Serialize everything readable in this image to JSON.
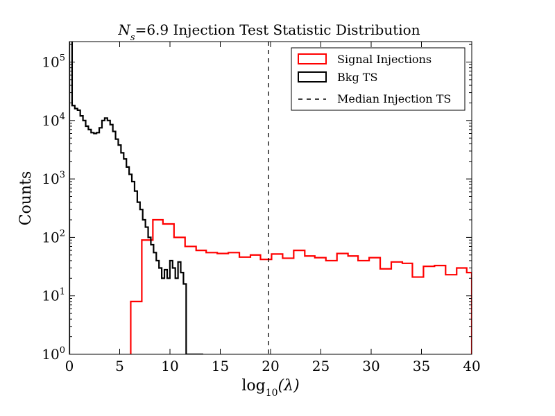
{
  "chart_data": {
    "type": "histogram",
    "title_prefix": "N",
    "title_subscript": "s",
    "title_rest": "=6.9 Injection Test Statistic Distribution",
    "xlabel_prefix": "log",
    "xlabel_subscript": "10",
    "xlabel_rest": "(λ)",
    "ylabel": "Counts",
    "xlim": [
      0,
      40
    ],
    "ylim_log10": [
      0,
      5.35
    ],
    "y_scale": "log",
    "grid": false,
    "legend_placement": "top-right",
    "x_ticks": [
      "0",
      "5",
      "10",
      "15",
      "20",
      "25",
      "30",
      "35",
      "40"
    ],
    "x_tick_values": [
      0,
      5,
      10,
      15,
      20,
      25,
      30,
      35,
      40
    ],
    "y_ticks": [
      {
        "base": "10",
        "exp": "0",
        "value": 1
      },
      {
        "base": "10",
        "exp": "1",
        "value": 10
      },
      {
        "base": "10",
        "exp": "2",
        "value": 100
      },
      {
        "base": "10",
        "exp": "3",
        "value": 1000
      },
      {
        "base": "10",
        "exp": "4",
        "value": 10000
      },
      {
        "base": "10",
        "exp": "5",
        "value": 100000
      }
    ],
    "series": [
      {
        "name": "Signal Injections",
        "color": "#ff0000",
        "style": "step",
        "bin_edges": [
          6.1,
          7.2,
          8.3,
          9.3,
          10.4,
          11.5,
          12.6,
          13.6,
          14.7,
          15.8,
          16.9,
          18.0,
          19.0,
          20.1,
          21.2,
          22.3,
          23.4,
          24.4,
          25.5,
          26.6,
          27.7,
          28.7,
          29.8,
          30.9,
          32.0,
          33.1,
          34.1,
          35.2,
          36.3,
          37.4,
          38.5,
          39.5,
          40.0
        ],
        "counts": [
          8,
          90,
          200,
          170,
          100,
          70,
          60,
          55,
          53,
          55,
          46,
          50,
          42,
          52,
          44,
          60,
          48,
          45,
          40,
          53,
          48,
          40,
          45,
          29,
          38,
          36,
          21,
          32,
          33,
          23,
          30,
          25
        ]
      },
      {
        "name": "Bkg TS",
        "color": "#000000",
        "style": "step",
        "bin_edges": [
          0.0,
          0.27,
          0.54,
          0.81,
          1.08,
          1.35,
          1.62,
          1.89,
          2.16,
          2.43,
          2.7,
          2.97,
          3.24,
          3.51,
          3.78,
          4.05,
          4.32,
          4.59,
          4.86,
          5.13,
          5.4,
          5.67,
          5.94,
          6.21,
          6.48,
          6.75,
          7.02,
          7.29,
          7.56,
          7.83,
          8.1,
          8.37,
          8.64,
          8.91,
          9.18,
          9.45,
          9.72,
          9.99,
          10.26,
          10.53,
          10.8,
          11.07,
          11.34,
          11.61,
          11.88,
          12.15,
          12.42,
          12.69,
          12.96,
          13.23
        ],
        "counts": [
          280000,
          18000,
          16000,
          15000,
          12000,
          10000,
          8000,
          7000,
          6200,
          6000,
          6200,
          7500,
          10000,
          11000,
          10000,
          8500,
          6500,
          4800,
          3800,
          2800,
          2200,
          1600,
          1200,
          900,
          620,
          400,
          300,
          200,
          150,
          100,
          75,
          55,
          40,
          30,
          20,
          28,
          20,
          40,
          30,
          20,
          38,
          25,
          16,
          1,
          1,
          1,
          1,
          1,
          1
        ]
      },
      {
        "name": "Median Injection TS",
        "color": "#000000",
        "style": "dashed-vline",
        "x": 19.8
      }
    ]
  }
}
